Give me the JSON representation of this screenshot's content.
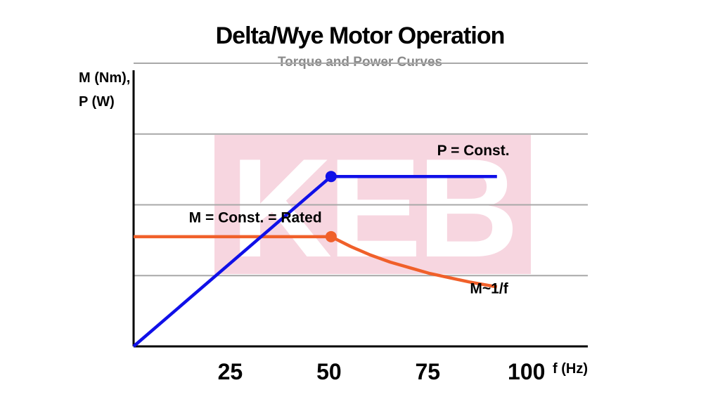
{
  "chart_data": {
    "type": "line",
    "title": "Delta/Wye Motor Operation",
    "subtitle": "Torque and Power Curves",
    "ylabel_line1": "M (Nm),",
    "ylabel_line2": "P (W)",
    "xlabel": "f (Hz)",
    "x_ticks": [
      "25",
      "50",
      "75",
      "100"
    ],
    "x_tick_values": [
      25,
      50,
      75,
      100
    ],
    "xlim": [
      0,
      115
    ],
    "ylim": [
      0,
      4
    ],
    "gridlines_y": [
      1,
      2,
      3,
      4
    ],
    "grid": true,
    "watermark": "KEB",
    "series": [
      {
        "name": "P = Const.",
        "color": "#1010e8",
        "x": [
          0,
          50,
          92
        ],
        "y": [
          0,
          2.4,
          2.4
        ],
        "marker_at": [
          50,
          2.4
        ]
      },
      {
        "name": "M = Const. = Rated",
        "color": "#f0602a",
        "x": [
          0,
          50,
          55,
          60,
          65,
          70,
          75,
          80,
          85,
          92
        ],
        "y": [
          1.55,
          1.55,
          1.41,
          1.29,
          1.19,
          1.11,
          1.03,
          0.97,
          0.91,
          0.84
        ],
        "marker_at": [
          50,
          1.55
        ]
      }
    ],
    "annotations": [
      {
        "text": "P = Const.",
        "x": 86,
        "y": 2.7
      },
      {
        "text": "M = Const. = Rated",
        "x": 14,
        "y": 1.75
      },
      {
        "text": "M~1/f",
        "x": 90,
        "y": 0.75
      }
    ]
  }
}
